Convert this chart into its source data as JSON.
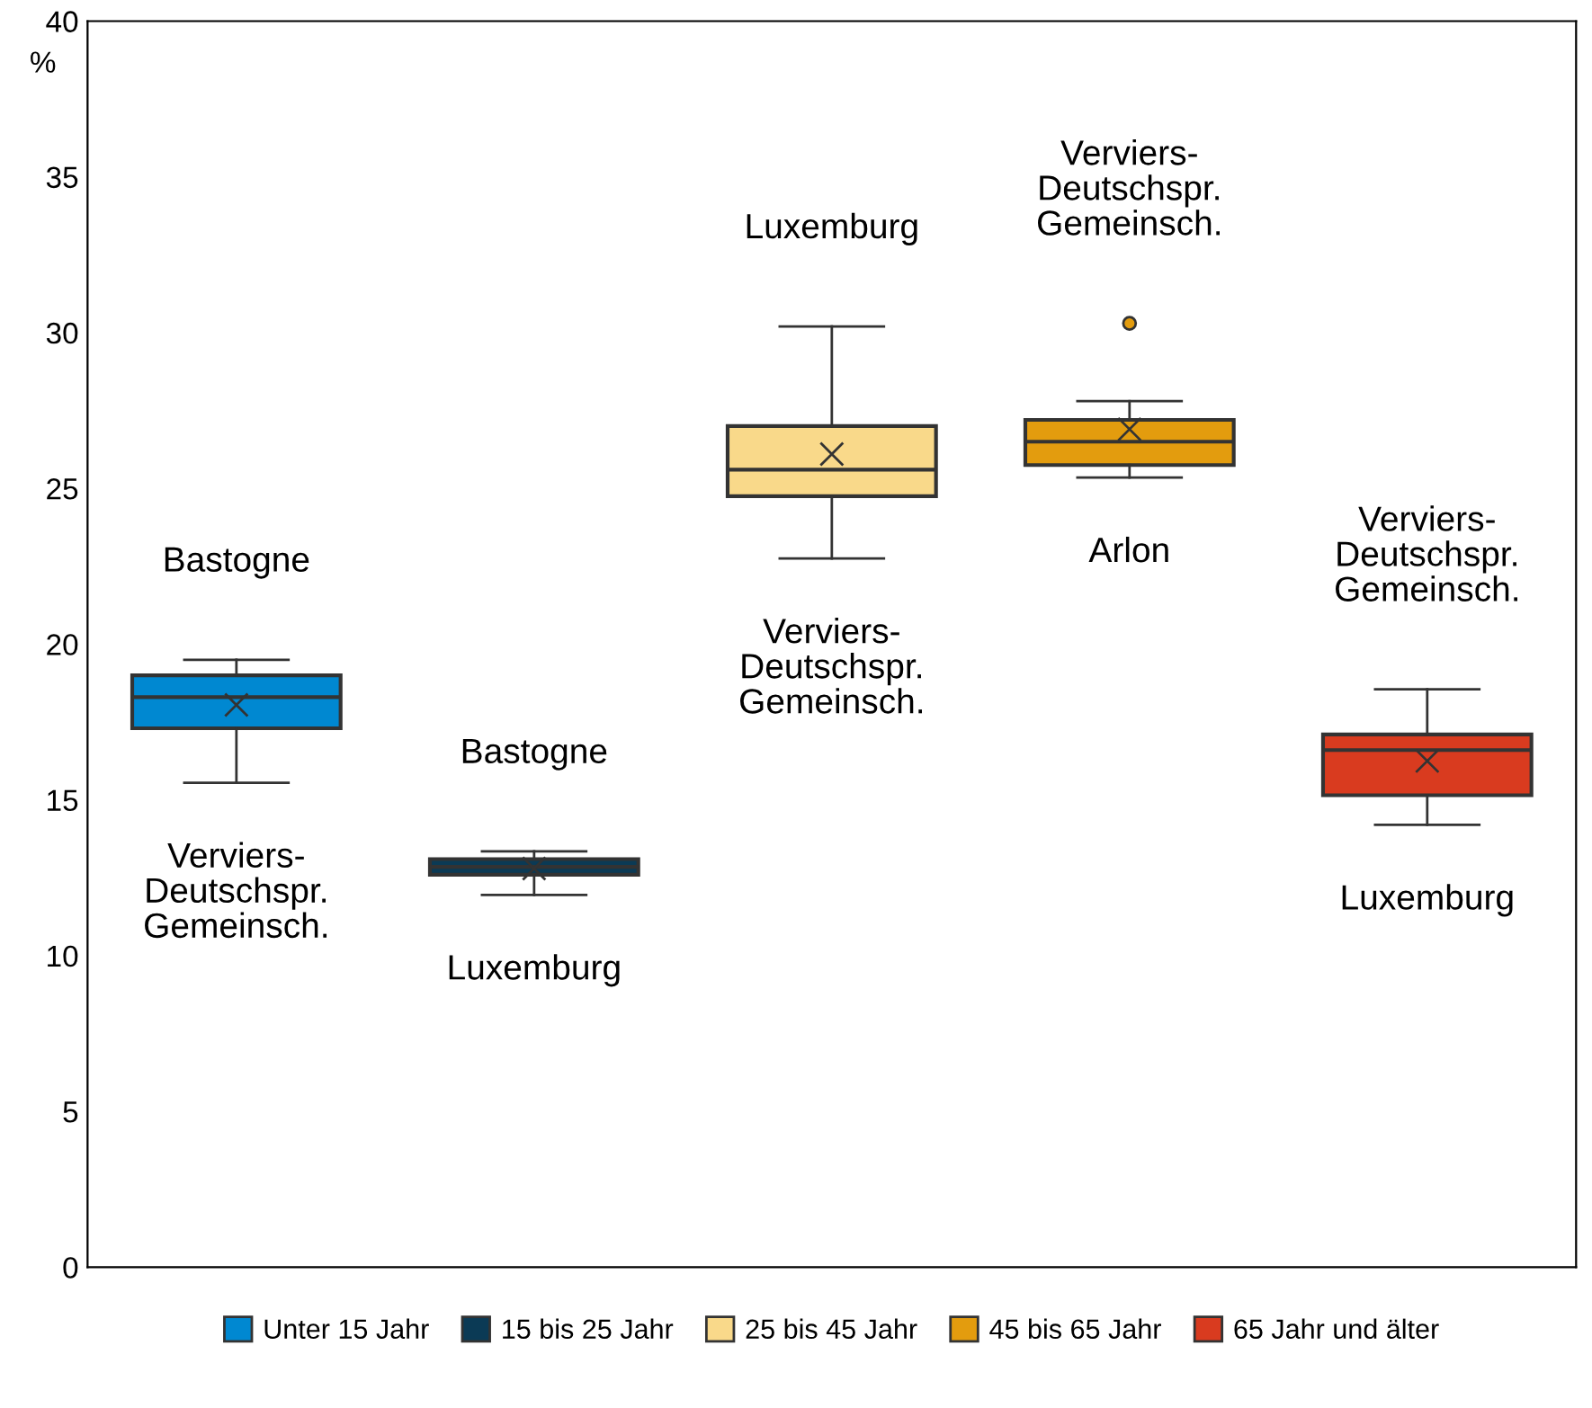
{
  "chart_data": {
    "type": "box",
    "ylabel": "%",
    "categories": [
      null,
      null,
      null,
      null,
      null
    ],
    "ylim": [
      0,
      40
    ],
    "yticks": [
      0,
      5,
      10,
      15,
      20,
      25,
      30,
      35,
      40
    ],
    "grid": false,
    "legend": "bottom",
    "series": [
      {
        "name": "Unter 15 Jahr",
        "color": "#0088d1",
        "boxes": [
          {
            "low": 15.55,
            "q1": 17.3,
            "median": 18.3,
            "q3": 19.0,
            "high": 19.5,
            "mean": 18.05
          },
          null,
          null,
          null,
          null
        ]
      },
      {
        "name": "15 bis 25 Jahr",
        "color": "#0b3a55",
        "boxes": [
          null,
          {
            "low": 11.95,
            "q1": 12.6,
            "median": 12.85,
            "q3": 13.1,
            "high": 13.35,
            "mean": 12.8
          },
          null,
          null,
          null
        ]
      },
      {
        "name": "25 bis 45 Jahr",
        "color": "#f9d98a",
        "boxes": [
          null,
          null,
          {
            "low": 22.75,
            "q1": 24.75,
            "median": 25.6,
            "q3": 27.0,
            "high": 30.2,
            "mean": 26.1
          },
          null,
          null
        ]
      },
      {
        "name": "45 bis 65 Jahr",
        "color": "#e39c0e",
        "boxes": [
          null,
          null,
          null,
          {
            "low": 25.35,
            "q1": 25.75,
            "median": 26.5,
            "q3": 27.2,
            "high": 27.8,
            "mean": 26.9,
            "outliers": [
              30.3
            ]
          },
          null
        ]
      },
      {
        "name": "65 Jahr und älter",
        "color": "#d93b1f",
        "boxes": [
          null,
          null,
          null,
          null,
          {
            "low": 14.2,
            "q1": 15.15,
            "median": 16.6,
            "q3": 17.1,
            "high": 18.55,
            "mean": 16.25
          }
        ]
      }
    ],
    "annotations": [
      "Bastogne",
      "Verviers-\nDeutschspr.\nGemeinsch.",
      "Bastogne",
      "Luxemburg",
      "Luxemburg",
      "Verviers-\nDeutschspr.\nGemeinsch.",
      "Verviers-\nDeutschspr.\nGemeinsch.",
      "Arlon",
      "Verviers-\nDeutschspr.\nGemeinsch.",
      "Luxemburg"
    ]
  }
}
